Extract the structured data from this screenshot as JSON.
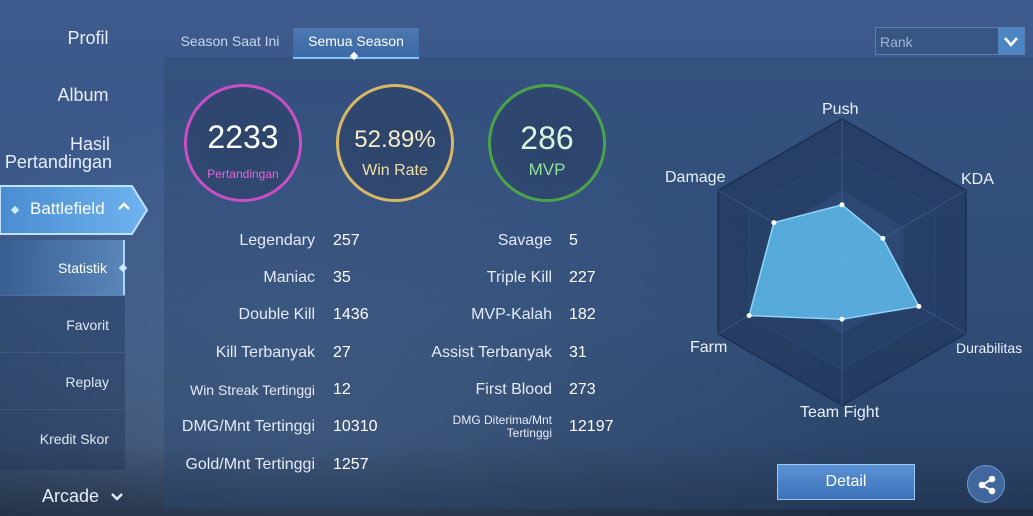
{
  "sidebar": {
    "top_items": [
      {
        "label": "Profil"
      },
      {
        "label": "Album"
      },
      {
        "label_line1": "Hasil",
        "label_line2": "Pertandingan"
      }
    ],
    "battlefield": {
      "label": "Battlefield",
      "arrow": "^"
    },
    "sub_items": [
      {
        "label": "Statistik",
        "active": true
      },
      {
        "label": "Favorit"
      },
      {
        "label": "Replay"
      },
      {
        "label": "Kredit Skor"
      }
    ],
    "arcade": {
      "label": "Arcade",
      "arrow": "v"
    }
  },
  "tabs": [
    {
      "label": "Season Saat Ini",
      "active": false
    },
    {
      "label": "Semua Season",
      "active": true
    }
  ],
  "rank_select": {
    "value": "Rank",
    "icon": "chevron-down-icon"
  },
  "circles": [
    {
      "value": "2233",
      "label": "Pertandingan",
      "color": "#c84fc4",
      "label_color": "#e068d8"
    },
    {
      "value": "52.89%",
      "label": "Win Rate",
      "color": "#d8b866",
      "label_color": "#f1dca4"
    },
    {
      "value": "286",
      "label": "MVP",
      "color": "#4aa34a",
      "label_color": "#8fe39a"
    }
  ],
  "stats_left": [
    {
      "label": "Legendary",
      "value": "257"
    },
    {
      "label": "Maniac",
      "value": "35"
    },
    {
      "label": "Double Kill",
      "value": "1436"
    },
    {
      "label": "Kill Terbanyak",
      "value": "27"
    },
    {
      "label": "Win Streak Tertinggi",
      "value": "12"
    },
    {
      "label": "DMG/Mnt Tertinggi",
      "value": "10310"
    },
    {
      "label": "Gold/Mnt Tertinggi",
      "value": "1257"
    }
  ],
  "stats_right": [
    {
      "label": "Savage",
      "value": "5"
    },
    {
      "label": "Triple Kill",
      "value": "227"
    },
    {
      "label": "MVP-Kalah",
      "value": "182"
    },
    {
      "label": "Assist Terbanyak",
      "value": "31"
    },
    {
      "label": "First Blood",
      "value": "273"
    },
    {
      "label_line1": "DMG Diterima/Mnt",
      "label_line2": "Tertinggi",
      "value": "12197"
    }
  ],
  "radar": {
    "axes": [
      "Push",
      "KDA",
      "Durabilitas",
      "Team Fight",
      "Farm",
      "Damage"
    ],
    "values": [
      0.4,
      0.33,
      0.62,
      0.4,
      0.75,
      0.55
    ],
    "fill_color": "#5db8e8"
  },
  "buttons": {
    "detail": "Detail",
    "share_icon": "share-icon"
  }
}
